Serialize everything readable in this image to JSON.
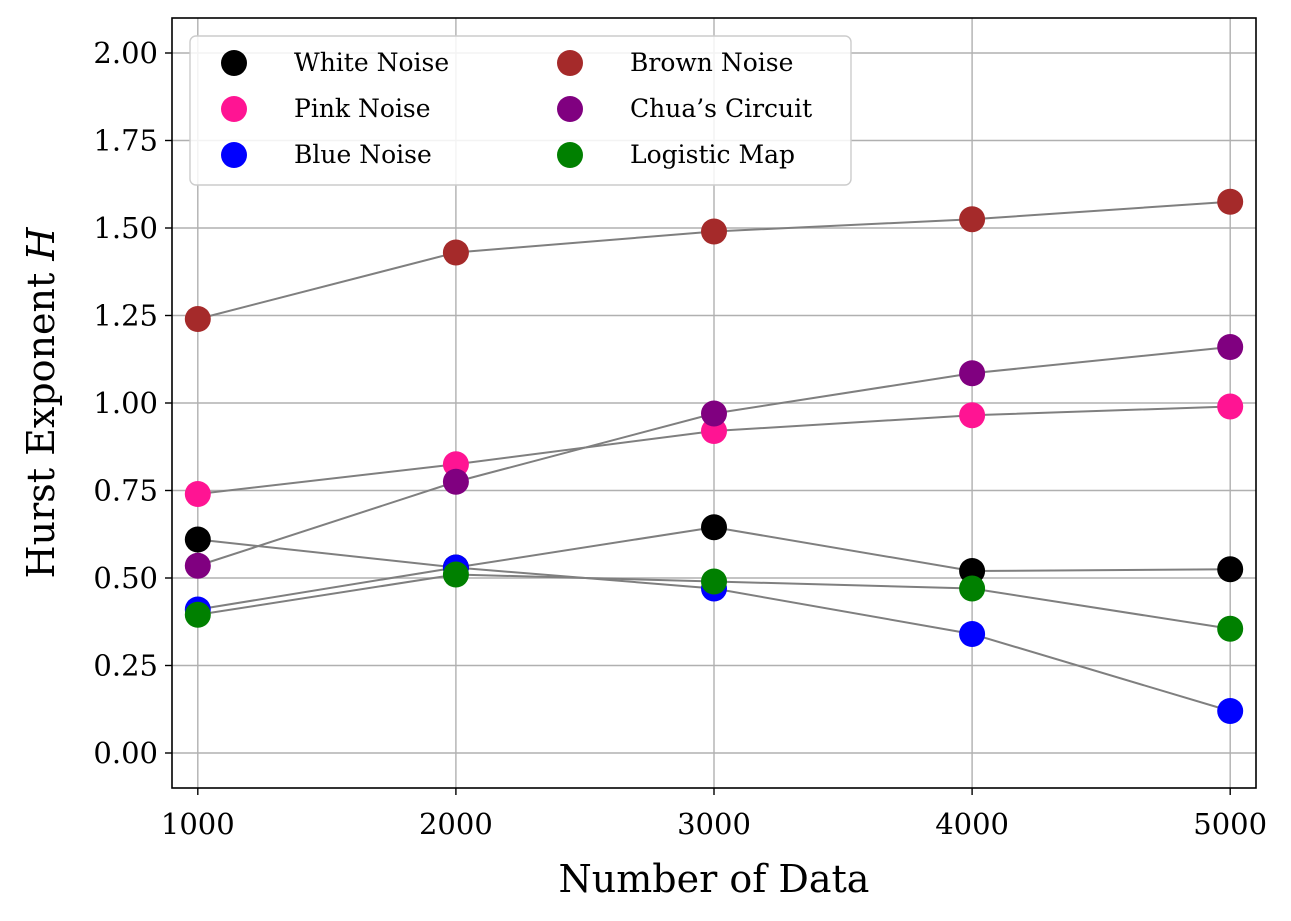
{
  "chart_data": {
    "type": "scatter",
    "title": "",
    "xlabel": "Number of Data",
    "ylabel_text": "Hurst Exponent ",
    "ylabel_symbol": "H",
    "x": [
      1000,
      2000,
      3000,
      4000,
      5000
    ],
    "xlim": [
      900,
      5100
    ],
    "ylim": [
      -0.1,
      2.1
    ],
    "xticks": [
      "1000",
      "2000",
      "3000",
      "4000",
      "5000"
    ],
    "xtick_values": [
      1000,
      2000,
      3000,
      4000,
      5000
    ],
    "yticks": [
      "0.00",
      "0.25",
      "0.50",
      "0.75",
      "1.00",
      "1.25",
      "1.50",
      "1.75",
      "2.00"
    ],
    "ytick_values": [
      0,
      0.25,
      0.5,
      0.75,
      1.0,
      1.25,
      1.5,
      1.75,
      2.0
    ],
    "grid": true,
    "legend_position": "top-left",
    "legend_columns": 2,
    "line_color": "#7f7f7f",
    "series": [
      {
        "name": "White Noise",
        "color": "#000000",
        "values": [
          0.61,
          0.53,
          0.645,
          0.52,
          0.525
        ]
      },
      {
        "name": "Pink Noise",
        "color": "#ff1493",
        "values": [
          0.74,
          0.825,
          0.92,
          0.965,
          0.99
        ]
      },
      {
        "name": "Blue Noise",
        "color": "#0000ff",
        "values": [
          0.41,
          0.53,
          0.47,
          0.34,
          0.12
        ]
      },
      {
        "name": "Brown Noise",
        "color": "#a52a2a",
        "values": [
          1.24,
          1.43,
          1.49,
          1.525,
          1.575
        ]
      },
      {
        "name": "Chua’s Circuit",
        "color": "#800080",
        "values": [
          0.535,
          0.775,
          0.97,
          1.085,
          1.16
        ]
      },
      {
        "name": "Logistic Map",
        "color": "#008000",
        "values": [
          0.395,
          0.51,
          0.49,
          0.47,
          0.355
        ]
      }
    ]
  }
}
